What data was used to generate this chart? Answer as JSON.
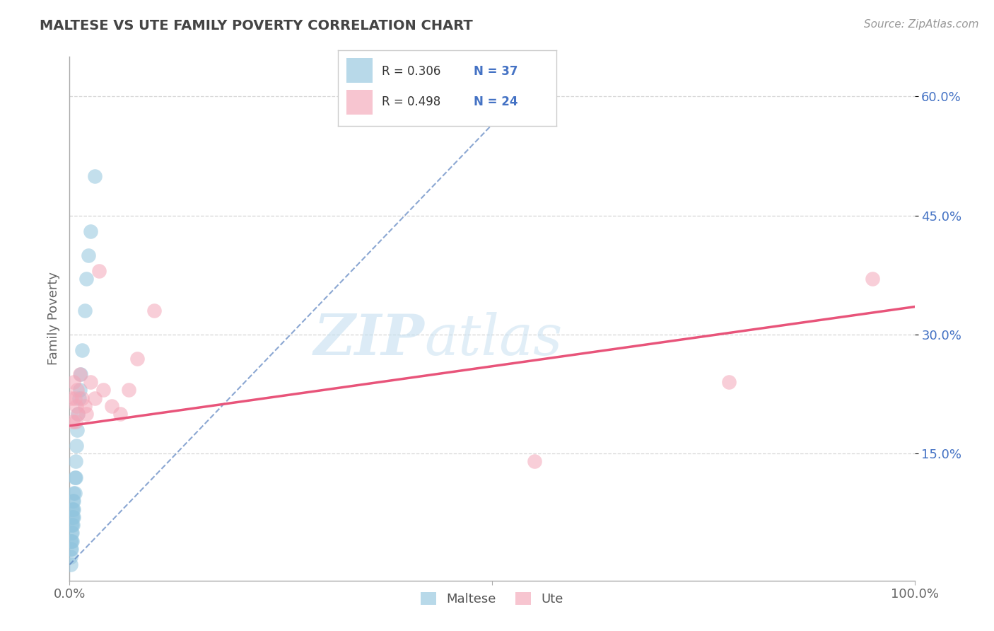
{
  "title": "MALTESE VS UTE FAMILY POVERTY CORRELATION CHART",
  "source_text": "Source: ZipAtlas.com",
  "ylabel": "Family Poverty",
  "watermark_zip": "ZIP",
  "watermark_atlas": "atlas",
  "y_ticks_right": [
    0.15,
    0.3,
    0.45,
    0.6
  ],
  "y_tick_labels_right": [
    "15.0%",
    "30.0%",
    "45.0%",
    "60.0%"
  ],
  "xlim": [
    0.0,
    1.0
  ],
  "ylim": [
    -0.01,
    0.65
  ],
  "maltese_color": "#92c5de",
  "ute_color": "#f4a6b8",
  "maltese_R": 0.306,
  "maltese_N": 37,
  "ute_R": 0.498,
  "ute_N": 24,
  "maltese_trend_color": "#5a82c0",
  "ute_trend_color": "#e8547a",
  "grid_color": "#cccccc",
  "background_color": "#ffffff",
  "maltese_x": [
    0.001,
    0.001,
    0.001,
    0.001,
    0.002,
    0.002,
    0.002,
    0.002,
    0.003,
    0.003,
    0.003,
    0.003,
    0.003,
    0.004,
    0.004,
    0.004,
    0.004,
    0.005,
    0.005,
    0.005,
    0.005,
    0.006,
    0.006,
    0.007,
    0.007,
    0.008,
    0.009,
    0.01,
    0.011,
    0.012,
    0.013,
    0.015,
    0.018,
    0.02,
    0.022,
    0.025,
    0.03
  ],
  "maltese_y": [
    0.01,
    0.02,
    0.03,
    0.04,
    0.03,
    0.04,
    0.05,
    0.06,
    0.04,
    0.05,
    0.06,
    0.07,
    0.08,
    0.06,
    0.07,
    0.08,
    0.09,
    0.07,
    0.08,
    0.09,
    0.1,
    0.1,
    0.12,
    0.12,
    0.14,
    0.16,
    0.18,
    0.2,
    0.22,
    0.23,
    0.25,
    0.28,
    0.33,
    0.37,
    0.4,
    0.43,
    0.5
  ],
  "ute_x": [
    0.002,
    0.004,
    0.005,
    0.006,
    0.007,
    0.008,
    0.009,
    0.01,
    0.012,
    0.015,
    0.018,
    0.02,
    0.025,
    0.03,
    0.035,
    0.04,
    0.05,
    0.06,
    0.07,
    0.08,
    0.1,
    0.55,
    0.78,
    0.95
  ],
  "ute_y": [
    0.22,
    0.19,
    0.24,
    0.22,
    0.19,
    0.21,
    0.23,
    0.2,
    0.25,
    0.22,
    0.21,
    0.2,
    0.24,
    0.22,
    0.38,
    0.23,
    0.21,
    0.2,
    0.23,
    0.27,
    0.33,
    0.14,
    0.24,
    0.37
  ],
  "maltese_trend_x0": 0.0,
  "maltese_trend_y0": 0.01,
  "maltese_trend_x1": 0.55,
  "maltese_trend_y1": 0.62,
  "ute_trend_x0": 0.0,
  "ute_trend_y0": 0.185,
  "ute_trend_x1": 1.0,
  "ute_trend_y1": 0.335
}
